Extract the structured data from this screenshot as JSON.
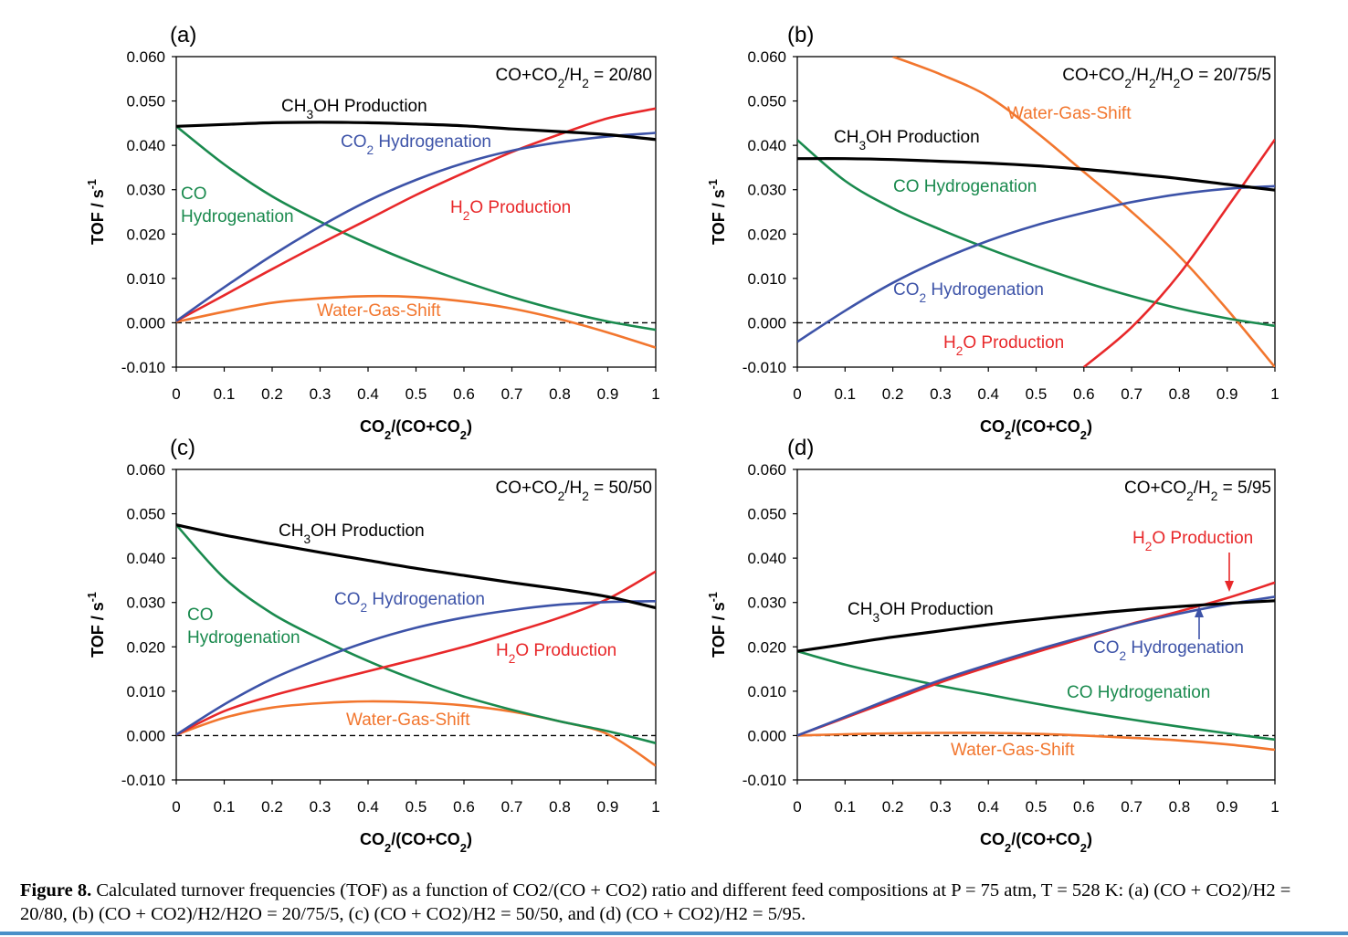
{
  "figure_caption": {
    "label": "Figure 8.",
    "text": "Calculated turnover frequencies (TOF) as a function of CO2/(CO + CO2) ratio and different feed compositions at P = 75 atm, T = 528 K: (a) (CO + CO2)/H2 = 20/80, (b) (CO + CO2)/H2/H2O = 20/75/5, (c) (CO + CO2)/H2 = 50/50, and (d) (CO + CO2)/H2 = 5/95."
  },
  "colors": {
    "CH3OH Production": "#000000",
    "CO2 Hydrogenation": "#3d53a8",
    "H2O Production": "#e8282a",
    "CO Hydrogenation": "#1a8a4e",
    "Water-Gas-Shift": "#f2762e",
    "zero_line": "#000000"
  },
  "chart_data": [
    {
      "type": "line",
      "panel": "(a)",
      "condition": "CO+CO2/H2 = 20/80",
      "xlabel": "CO2/(CO+CO2)",
      "ylabel": "TOF / s-1",
      "xlim": [
        0,
        1
      ],
      "ylim": [
        -0.01,
        0.06
      ],
      "xticks": [
        "0",
        "0.1",
        "0.2",
        "0.3",
        "0.4",
        "0.5",
        "0.6",
        "0.7",
        "0.8",
        "0.9",
        "1"
      ],
      "yticks": [
        "-0.010",
        "0.000",
        "0.010",
        "0.020",
        "0.030",
        "0.040",
        "0.050",
        "0.060"
      ],
      "x": [
        0,
        0.1,
        0.2,
        0.3,
        0.4,
        0.5,
        0.6,
        0.7,
        0.8,
        0.9,
        1.0
      ],
      "series": [
        {
          "name": "CH3OH Production",
          "values": [
            0.0443,
            0.0447,
            0.0451,
            0.0452,
            0.0451,
            0.0448,
            0.0444,
            0.0437,
            0.0431,
            0.0424,
            0.0413
          ]
        },
        {
          "name": "CO2 Hydrogenation",
          "values": [
            0.0004,
            0.008,
            0.0152,
            0.0217,
            0.0275,
            0.0322,
            0.036,
            0.0388,
            0.0407,
            0.042,
            0.0428
          ]
        },
        {
          "name": "H2O Production",
          "values": [
            0.0004,
            0.0062,
            0.0121,
            0.0178,
            0.0233,
            0.0288,
            0.0338,
            0.0385,
            0.0425,
            0.0461,
            0.0483
          ]
        },
        {
          "name": "CO Hydrogenation",
          "values": [
            0.0443,
            0.0357,
            0.0285,
            0.0228,
            0.0178,
            0.0133,
            0.0093,
            0.0058,
            0.0028,
            0.0003,
            -0.0016
          ]
        },
        {
          "name": "Water-Gas-Shift",
          "values": [
            0.0002,
            0.0025,
            0.0045,
            0.0055,
            0.006,
            0.0058,
            0.0048,
            0.0032,
            0.0008,
            -0.0022,
            -0.0056
          ]
        }
      ],
      "labels": [
        {
          "series": "CH3OH Production",
          "text": "CH3OH Production"
        },
        {
          "series": "CO2 Hydrogenation",
          "text": "CO2 Hydrogenation"
        },
        {
          "series": "H2O Production",
          "text": "H2O Production"
        },
        {
          "series": "CO Hydrogenation",
          "text": "CO",
          "line2": "Hydrogenation"
        },
        {
          "series": "Water-Gas-Shift",
          "text": "Water-Gas-Shift"
        }
      ]
    },
    {
      "type": "line",
      "panel": "(b)",
      "condition": "CO+CO2/H2/H2O = 20/75/5",
      "xlabel": "CO2/(CO+CO2)",
      "ylabel": "TOF / s-1",
      "xlim": [
        0,
        1
      ],
      "ylim": [
        -0.01,
        0.06
      ],
      "xticks": [
        "0",
        "0.1",
        "0.2",
        "0.3",
        "0.4",
        "0.5",
        "0.6",
        "0.7",
        "0.8",
        "0.9",
        "1"
      ],
      "yticks": [
        "-0.010",
        "0.000",
        "0.010",
        "0.020",
        "0.030",
        "0.040",
        "0.050",
        "0.060"
      ],
      "x": [
        0,
        0.1,
        0.2,
        0.3,
        0.4,
        0.5,
        0.6,
        0.7,
        0.8,
        0.9,
        1.0
      ],
      "series": [
        {
          "name": "CH3OH Production",
          "values": [
            0.037,
            0.037,
            0.0368,
            0.0364,
            0.036,
            0.0354,
            0.0346,
            0.0336,
            0.0325,
            0.0312,
            0.0299
          ]
        },
        {
          "name": "CO2 Hydrogenation",
          "values": [
            -0.0043,
            0.0027,
            0.009,
            0.0142,
            0.0185,
            0.022,
            0.0248,
            0.0272,
            0.029,
            0.0302,
            0.0308
          ]
        },
        {
          "name": "H2O Production",
          "values": [
            null,
            null,
            null,
            null,
            null,
            null,
            -0.01,
            -0.001,
            0.011,
            0.026,
            0.0413
          ]
        },
        {
          "name": "CO Hydrogenation",
          "values": [
            0.0412,
            0.032,
            0.0258,
            0.021,
            0.0167,
            0.0128,
            0.0092,
            0.006,
            0.0032,
            0.001,
            -0.0007
          ]
        },
        {
          "name": "Water-Gas-Shift",
          "values": [
            null,
            null,
            0.06,
            0.056,
            0.051,
            0.043,
            0.034,
            0.025,
            0.015,
            0.003,
            -0.01
          ]
        }
      ],
      "labels": [
        {
          "series": "CH3OH Production",
          "text": "CH3OH Production"
        },
        {
          "series": "CO2 Hydrogenation",
          "text": "CO2 Hydrogenation"
        },
        {
          "series": "H2O Production",
          "text": "H2O Production"
        },
        {
          "series": "CO Hydrogenation",
          "text": "CO Hydrogenation"
        },
        {
          "series": "Water-Gas-Shift",
          "text": "Water-Gas-Shift"
        }
      ]
    },
    {
      "type": "line",
      "panel": "(c)",
      "condition": "CO+CO2/H2 = 50/50",
      "xlabel": "CO2/(CO+CO2)",
      "ylabel": "TOF / s-1",
      "xlim": [
        0,
        1
      ],
      "ylim": [
        -0.01,
        0.06
      ],
      "xticks": [
        "0",
        "0.1",
        "0.2",
        "0.3",
        "0.4",
        "0.5",
        "0.6",
        "0.7",
        "0.8",
        "0.9",
        "1"
      ],
      "yticks": [
        "-0.010",
        "0.000",
        "0.010",
        "0.020",
        "0.030",
        "0.040",
        "0.050",
        "0.060"
      ],
      "x": [
        0,
        0.1,
        0.2,
        0.3,
        0.4,
        0.5,
        0.6,
        0.7,
        0.8,
        0.9,
        1.0
      ],
      "series": [
        {
          "name": "CH3OH Production",
          "values": [
            0.0475,
            0.0452,
            0.0432,
            0.0413,
            0.0395,
            0.0377,
            0.0361,
            0.0345,
            0.033,
            0.0313,
            0.0288
          ]
        },
        {
          "name": "CO2 Hydrogenation",
          "values": [
            0.0002,
            0.007,
            0.0128,
            0.0173,
            0.0212,
            0.0243,
            0.0266,
            0.0283,
            0.0295,
            0.0301,
            0.0303
          ]
        },
        {
          "name": "H2O Production",
          "values": [
            0.0002,
            0.0055,
            0.009,
            0.0118,
            0.0145,
            0.0172,
            0.02,
            0.0232,
            0.0266,
            0.0308,
            0.037
          ]
        },
        {
          "name": "CO Hydrogenation",
          "values": [
            0.0475,
            0.0355,
            0.0275,
            0.0218,
            0.0168,
            0.0125,
            0.0088,
            0.0058,
            0.0032,
            0.001,
            -0.0017
          ]
        },
        {
          "name": "Water-Gas-Shift",
          "values": [
            0.0002,
            0.004,
            0.0063,
            0.0073,
            0.0077,
            0.0075,
            0.0068,
            0.0054,
            0.0032,
            0.0003,
            -0.0068
          ]
        }
      ],
      "labels": [
        {
          "series": "CH3OH Production",
          "text": "CH3OH Production"
        },
        {
          "series": "CO2 Hydrogenation",
          "text": "CO2 Hydrogenation"
        },
        {
          "series": "H2O Production",
          "text": "H2O Production"
        },
        {
          "series": "CO Hydrogenation",
          "text": "CO",
          "line2": "Hydrogenation"
        },
        {
          "series": "Water-Gas-Shift",
          "text": "Water-Gas-Shift"
        }
      ]
    },
    {
      "type": "line",
      "panel": "(d)",
      "condition": "CO+CO2/H2 = 5/95",
      "xlabel": "CO2/(CO+CO2)",
      "ylabel": "TOF / s-1",
      "xlim": [
        0,
        1
      ],
      "ylim": [
        -0.01,
        0.06
      ],
      "xticks": [
        "0",
        "0.1",
        "0.2",
        "0.3",
        "0.4",
        "0.5",
        "0.6",
        "0.7",
        "0.8",
        "0.9",
        "1"
      ],
      "yticks": [
        "-0.010",
        "0.000",
        "0.010",
        "0.020",
        "0.030",
        "0.040",
        "0.050",
        "0.060"
      ],
      "x": [
        0,
        0.1,
        0.2,
        0.3,
        0.4,
        0.5,
        0.6,
        0.7,
        0.8,
        0.9,
        1.0
      ],
      "series": [
        {
          "name": "CH3OH Production",
          "values": [
            0.019,
            0.0206,
            0.0222,
            0.0236,
            0.025,
            0.0262,
            0.0273,
            0.0283,
            0.0291,
            0.0298,
            0.0304
          ]
        },
        {
          "name": "CO2 Hydrogenation",
          "values": [
            0.0,
            0.0042,
            0.0085,
            0.0125,
            0.016,
            0.0193,
            0.0223,
            0.0251,
            0.0275,
            0.0296,
            0.0313
          ]
        },
        {
          "name": "H2O Production",
          "values": [
            0.0,
            0.004,
            0.008,
            0.012,
            0.0155,
            0.0188,
            0.022,
            0.0252,
            0.028,
            0.031,
            0.0345
          ]
        },
        {
          "name": "CO Hydrogenation",
          "values": [
            0.019,
            0.016,
            0.0135,
            0.0112,
            0.0092,
            0.0072,
            0.0053,
            0.0036,
            0.002,
            0.0005,
            -0.0009
          ]
        },
        {
          "name": "Water-Gas-Shift",
          "values": [
            0.0,
            0.0003,
            0.0005,
            0.0006,
            0.0006,
            0.0004,
            0.0,
            -0.0005,
            -0.0011,
            -0.002,
            -0.0032
          ]
        }
      ],
      "labels": [
        {
          "series": "CH3OH Production",
          "text": "CH3OH Production"
        },
        {
          "series": "CO2 Hydrogenation",
          "text": "CO2 Hydrogenation"
        },
        {
          "series": "H2O Production",
          "text": "H2O Production"
        },
        {
          "series": "CO Hydrogenation",
          "text": "CO Hydrogenation"
        },
        {
          "series": "Water-Gas-Shift",
          "text": "Water-Gas-Shift"
        }
      ]
    }
  ]
}
